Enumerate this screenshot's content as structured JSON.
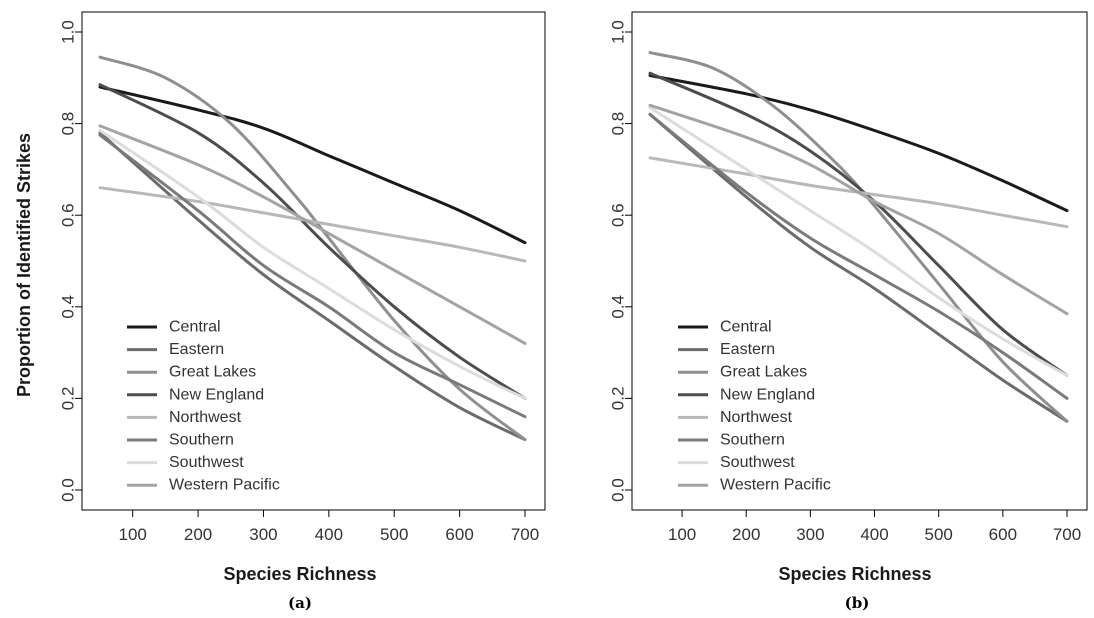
{
  "chart_data": [
    {
      "type": "line",
      "panel_label": "(a)",
      "xlabel": "Species Richness",
      "ylabel": "Proportion of Identified Strikes",
      "xlim": [
        50,
        700
      ],
      "ylim": [
        0,
        1
      ],
      "x_ticks": [
        100,
        200,
        300,
        400,
        500,
        600,
        700
      ],
      "y_ticks": [
        0.0,
        0.2,
        0.4,
        0.6,
        0.8,
        1.0
      ],
      "y_tick_labels": [
        "0.0",
        "0.2",
        "0.4",
        "0.6",
        "0.8",
        "1.0"
      ],
      "legend_position": "bottom-left",
      "series": [
        {
          "name": "Central",
          "color": "#1a1a1a",
          "x": [
            50,
            200,
            300,
            400,
            500,
            600,
            700
          ],
          "values": [
            0.88,
            0.83,
            0.79,
            0.73,
            0.67,
            0.61,
            0.54
          ]
        },
        {
          "name": "Eastern",
          "color": "#6b6b6b",
          "x": [
            50,
            200,
            300,
            400,
            500,
            600,
            700
          ],
          "values": [
            0.78,
            0.59,
            0.47,
            0.37,
            0.27,
            0.18,
            0.11
          ]
        },
        {
          "name": "Great Lakes",
          "color": "#8f8f8f",
          "x": [
            50,
            150,
            250,
            350,
            400,
            500,
            600,
            700
          ],
          "values": [
            0.945,
            0.9,
            0.8,
            0.64,
            0.55,
            0.37,
            0.22,
            0.11
          ]
        },
        {
          "name": "New England",
          "color": "#4d4d4d",
          "x": [
            50,
            200,
            300,
            400,
            500,
            600,
            700
          ],
          "values": [
            0.885,
            0.78,
            0.67,
            0.53,
            0.4,
            0.29,
            0.2
          ]
        },
        {
          "name": "Northwest",
          "color": "#b8b8b8",
          "x": [
            50,
            200,
            300,
            400,
            500,
            600,
            700
          ],
          "values": [
            0.66,
            0.63,
            0.605,
            0.58,
            0.555,
            0.53,
            0.5
          ]
        },
        {
          "name": "Southern",
          "color": "#7a7a7a",
          "x": [
            50,
            200,
            300,
            400,
            500,
            600,
            700
          ],
          "values": [
            0.775,
            0.61,
            0.49,
            0.4,
            0.3,
            0.23,
            0.16
          ]
        },
        {
          "name": "Southwest",
          "color": "#dcdcdc",
          "x": [
            50,
            200,
            300,
            400,
            500,
            600,
            700
          ],
          "values": [
            0.785,
            0.64,
            0.53,
            0.44,
            0.35,
            0.27,
            0.2
          ]
        },
        {
          "name": "Western Pacific",
          "color": "#a3a3a3",
          "x": [
            50,
            200,
            300,
            400,
            500,
            600,
            700
          ],
          "values": [
            0.795,
            0.71,
            0.64,
            0.56,
            0.48,
            0.4,
            0.32
          ]
        }
      ]
    },
    {
      "type": "line",
      "panel_label": "(b)",
      "xlabel": "Species Richness",
      "ylabel": "",
      "xlim": [
        50,
        700
      ],
      "ylim": [
        0,
        1
      ],
      "x_ticks": [
        100,
        200,
        300,
        400,
        500,
        600,
        700
      ],
      "y_ticks": [
        0.0,
        0.2,
        0.4,
        0.6,
        0.8,
        1.0
      ],
      "y_tick_labels": [
        "0.0",
        "0.2",
        "0.4",
        "0.6",
        "0.8",
        "1.0"
      ],
      "legend_position": "bottom-left",
      "series": [
        {
          "name": "Central",
          "color": "#1a1a1a",
          "x": [
            50,
            200,
            300,
            400,
            500,
            600,
            700
          ],
          "values": [
            0.905,
            0.865,
            0.83,
            0.785,
            0.735,
            0.675,
            0.61
          ]
        },
        {
          "name": "Eastern",
          "color": "#6b6b6b",
          "x": [
            50,
            200,
            300,
            400,
            500,
            600,
            700
          ],
          "values": [
            0.82,
            0.64,
            0.53,
            0.44,
            0.34,
            0.24,
            0.15
          ]
        },
        {
          "name": "Great Lakes",
          "color": "#8f8f8f",
          "x": [
            50,
            150,
            250,
            350,
            400,
            500,
            600,
            700
          ],
          "values": [
            0.955,
            0.92,
            0.83,
            0.7,
            0.62,
            0.45,
            0.28,
            0.15
          ]
        },
        {
          "name": "New England",
          "color": "#4d4d4d",
          "x": [
            50,
            200,
            300,
            400,
            500,
            600,
            700
          ],
          "values": [
            0.91,
            0.82,
            0.74,
            0.63,
            0.49,
            0.35,
            0.25
          ]
        },
        {
          "name": "Northwest",
          "color": "#b8b8b8",
          "x": [
            50,
            200,
            300,
            400,
            500,
            600,
            700
          ],
          "values": [
            0.725,
            0.69,
            0.665,
            0.645,
            0.625,
            0.6,
            0.575
          ]
        },
        {
          "name": "Southern",
          "color": "#7a7a7a",
          "x": [
            50,
            200,
            300,
            400,
            500,
            600,
            700
          ],
          "values": [
            0.82,
            0.65,
            0.55,
            0.47,
            0.39,
            0.3,
            0.2
          ]
        },
        {
          "name": "Southwest",
          "color": "#dcdcdc",
          "x": [
            50,
            200,
            300,
            400,
            500,
            600,
            700
          ],
          "values": [
            0.835,
            0.7,
            0.61,
            0.52,
            0.42,
            0.33,
            0.25
          ]
        },
        {
          "name": "Western Pacific",
          "color": "#a3a3a3",
          "x": [
            50,
            200,
            300,
            400,
            500,
            600,
            700
          ],
          "values": [
            0.84,
            0.77,
            0.71,
            0.63,
            0.56,
            0.47,
            0.385
          ]
        }
      ]
    }
  ]
}
